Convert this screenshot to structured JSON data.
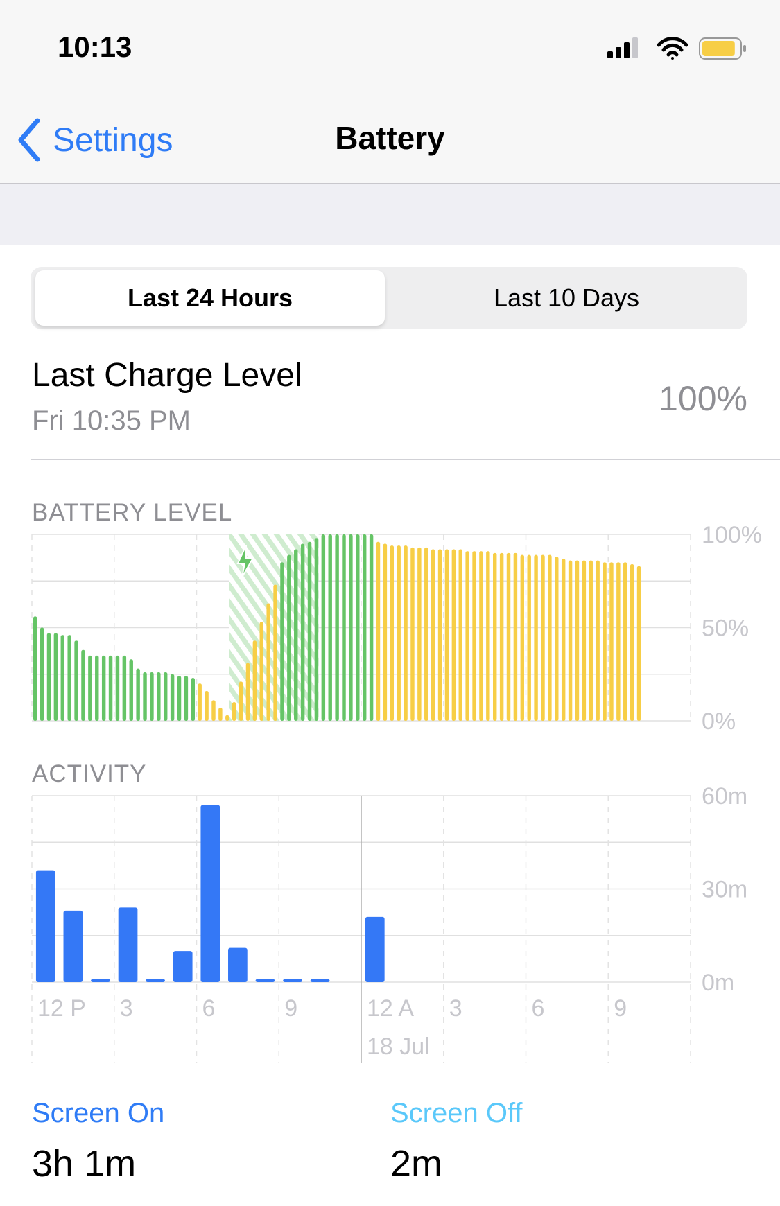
{
  "status_bar": {
    "time": "10:13",
    "signal_bars": 3,
    "signal_max": 4,
    "wifi": "wifi-icon",
    "battery_color": "#f7ce46",
    "battery_level": 0.9
  },
  "nav": {
    "back_label": "Settings",
    "title": "Battery"
  },
  "segmented": {
    "options": [
      "Last 24 Hours",
      "Last 10 Days"
    ],
    "selected": 0
  },
  "last_charge": {
    "label": "Last Charge Level",
    "time": "Fri 10:35 PM",
    "value": "100%"
  },
  "colors": {
    "accent": "#2f7cf6",
    "green": "#65c466",
    "yellow": "#f7ce46",
    "blue": "#3478f6",
    "screen_off": "#5ac8fa"
  },
  "chart_data": [
    {
      "type": "bar",
      "title": "BATTERY LEVEL",
      "ylim": [
        0,
        100
      ],
      "y_tick_labels": [
        "100%",
        "50%",
        "0%"
      ],
      "grid": true,
      "slots": 96,
      "values": [
        56,
        50,
        47,
        47,
        46,
        46,
        43,
        38,
        35,
        35,
        35,
        35,
        35,
        35,
        33,
        28,
        26,
        26,
        26,
        26,
        25,
        24,
        24,
        23,
        20,
        16,
        11,
        7,
        3,
        10,
        21,
        31,
        43,
        53,
        63,
        73,
        85,
        89,
        92,
        95,
        96,
        98,
        100,
        100,
        100,
        100,
        100,
        100,
        100,
        100,
        96,
        95,
        94,
        94,
        94,
        93,
        93,
        93,
        92,
        92,
        92,
        92,
        92,
        91,
        91,
        91,
        91,
        90,
        90,
        90,
        90,
        89,
        89,
        89,
        89,
        89,
        88,
        87,
        86,
        86,
        86,
        86,
        86,
        85,
        85,
        85,
        85,
        84,
        83
      ],
      "bar_colors": [
        "g",
        "g",
        "g",
        "g",
        "g",
        "g",
        "g",
        "g",
        "g",
        "g",
        "g",
        "g",
        "g",
        "g",
        "g",
        "g",
        "g",
        "g",
        "g",
        "g",
        "g",
        "g",
        "g",
        "g",
        "y",
        "y",
        "y",
        "y",
        "y",
        "y",
        "y",
        "y",
        "y",
        "y",
        "y",
        "y",
        "g",
        "g",
        "g",
        "g",
        "g",
        "g",
        "g",
        "g",
        "g",
        "g",
        "g",
        "g",
        "g",
        "g",
        "y",
        "y",
        "y",
        "y",
        "y",
        "y",
        "y",
        "y",
        "y",
        "y",
        "y",
        "y",
        "y",
        "y",
        "y",
        "y",
        "y",
        "y",
        "y",
        "y",
        "y",
        "y",
        "y",
        "y",
        "y",
        "y",
        "y",
        "y",
        "y",
        "y",
        "y",
        "y",
        "y",
        "y",
        "y",
        "y",
        "y",
        "y",
        "y"
      ],
      "charging_slots": [
        29,
        41
      ]
    },
    {
      "type": "bar",
      "title": "ACTIVITY",
      "ylim": [
        0,
        60
      ],
      "y_tick_labels": [
        "60m",
        "30m",
        "0m"
      ],
      "grid": true,
      "x_tick_labels": [
        "12 P",
        "3",
        "6",
        "9",
        "12 A",
        "3",
        "6",
        "9"
      ],
      "date_label": "18 Jul",
      "values": [
        36,
        23,
        1,
        24,
        1,
        10,
        57,
        11,
        1,
        1,
        1,
        0,
        21,
        0,
        0,
        0,
        0,
        0,
        0,
        0,
        0,
        0,
        0,
        0
      ]
    }
  ],
  "summary": {
    "screen_on_label": "Screen On",
    "screen_on_value": "3h 1m",
    "screen_off_label": "Screen Off",
    "screen_off_value": "2m"
  }
}
